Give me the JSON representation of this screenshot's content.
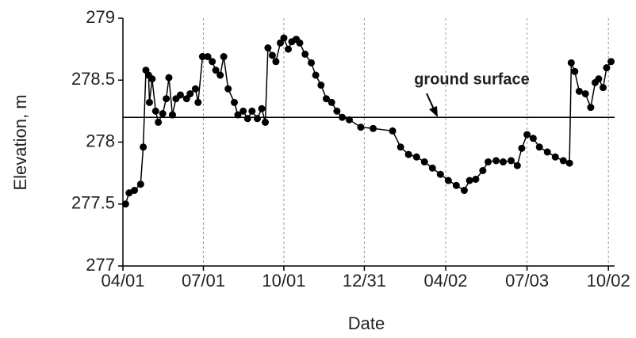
{
  "chart_data": {
    "type": "line",
    "x_label": "Date",
    "y_label": "Elevation, m",
    "xlim": [
      0,
      556
    ],
    "ylim": [
      277,
      279
    ],
    "xticks": [
      {
        "value": 0,
        "label": "04/01"
      },
      {
        "value": 91,
        "label": "07/01"
      },
      {
        "value": 182,
        "label": "10/01"
      },
      {
        "value": 273,
        "label": "12/31"
      },
      {
        "value": 365,
        "label": "04/02"
      },
      {
        "value": 457,
        "label": "07/03"
      },
      {
        "value": 549,
        "label": "10/02"
      }
    ],
    "yticks": [
      277,
      277.5,
      278,
      278.5,
      279
    ],
    "grid": true,
    "reference_line": {
      "value": 278.2,
      "label": "ground surface"
    },
    "series": [
      {
        "color": "#000000",
        "x": [
          3,
          7,
          13,
          20,
          23,
          26,
          29,
          30,
          33,
          37,
          40,
          45,
          49,
          52,
          56,
          60,
          65,
          72,
          76,
          82,
          85,
          90,
          96,
          101,
          105,
          110,
          114,
          119,
          126,
          130,
          136,
          141,
          146,
          152,
          157,
          161,
          164,
          169,
          173,
          178,
          182,
          187,
          191,
          196,
          200,
          206,
          213,
          218,
          224,
          230,
          236,
          242,
          248,
          256,
          269,
          283,
          305,
          314,
          323,
          332,
          341,
          350,
          359,
          368,
          377,
          386,
          392,
          399,
          407,
          413,
          422,
          430,
          439,
          446,
          451,
          457,
          464,
          471,
          480,
          489,
          498,
          505,
          507,
          511,
          516,
          523,
          529,
          534,
          538,
          543,
          547,
          552
        ],
        "values": [
          277.5,
          277.59,
          277.61,
          277.66,
          277.96,
          278.58,
          278.54,
          278.32,
          278.51,
          278.25,
          278.16,
          278.23,
          278.35,
          278.52,
          278.22,
          278.35,
          278.38,
          278.35,
          278.39,
          278.43,
          278.32,
          278.69,
          278.69,
          278.65,
          278.58,
          278.54,
          278.69,
          278.43,
          278.32,
          278.22,
          278.25,
          278.19,
          278.25,
          278.19,
          278.27,
          278.16,
          278.76,
          278.7,
          278.65,
          278.8,
          278.84,
          278.75,
          278.81,
          278.83,
          278.8,
          278.71,
          278.64,
          278.54,
          278.46,
          278.35,
          278.32,
          278.25,
          278.2,
          278.18,
          278.12,
          278.11,
          278.09,
          277.96,
          277.9,
          277.88,
          277.84,
          277.79,
          277.74,
          277.69,
          277.65,
          277.61,
          277.69,
          277.7,
          277.77,
          277.84,
          277.85,
          277.84,
          277.85,
          277.81,
          277.95,
          278.06,
          278.03,
          277.96,
          277.92,
          277.88,
          277.85,
          277.83,
          278.64,
          278.57,
          278.41,
          278.39,
          278.28,
          278.48,
          278.51,
          278.44,
          278.6,
          278.65
        ]
      }
    ]
  }
}
